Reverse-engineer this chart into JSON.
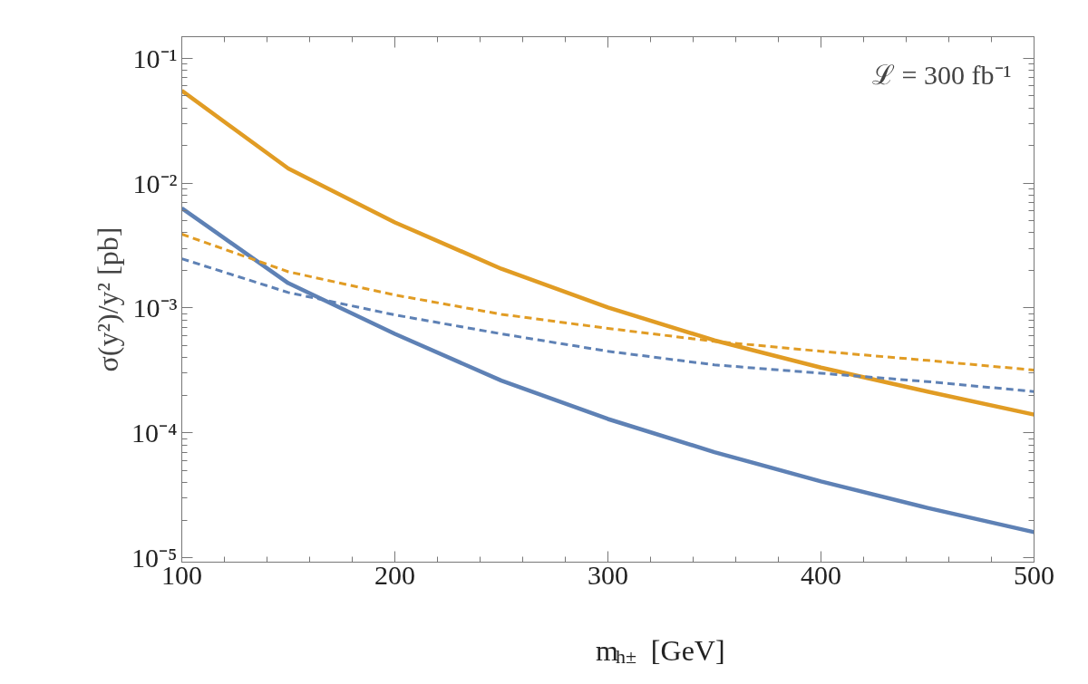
{
  "chart_data": {
    "type": "line",
    "xlabel": "m$_{h±}$ [GeV]",
    "ylabel": "σ(y²)/y² [pb]",
    "log": "y",
    "grid": false,
    "annotations": [
      "ℒ = 300 fb⁻¹"
    ],
    "x": [
      100,
      150,
      200,
      250,
      300,
      350,
      400,
      450,
      500
    ],
    "xlim": [
      100,
      500
    ],
    "xticks": [
      100,
      {
        "value": 120,
        "label": null
      },
      {
        "value": 140,
        "label": null
      },
      {
        "value": 160,
        "label": null
      },
      {
        "value": 180,
        "label": null
      },
      200,
      {
        "value": 220,
        "label": null
      },
      {
        "value": 240,
        "label": null
      },
      {
        "value": 260,
        "label": null
      },
      {
        "value": 280,
        "label": null
      },
      300,
      {
        "value": 320,
        "label": null
      },
      {
        "value": 340,
        "label": null
      },
      {
        "value": 360,
        "label": null
      },
      {
        "value": 380,
        "label": null
      },
      400,
      {
        "value": 420,
        "label": null
      },
      {
        "value": 440,
        "label": null
      },
      {
        "value": 460,
        "label": null
      },
      {
        "value": 480,
        "label": null
      },
      500
    ],
    "ylim": [
      9.2e-06,
      0.149
    ],
    "yticks": [
      {
        "value": 1e-05,
        "label": "10⁻⁵"
      },
      {
        "value": 2e-05,
        "label": null
      },
      {
        "value": 3e-05,
        "label": null
      },
      {
        "value": 4e-05,
        "label": null
      },
      {
        "value": 5e-05,
        "label": null
      },
      {
        "value": 6e-05,
        "label": null
      },
      {
        "value": 7e-05,
        "label": null
      },
      {
        "value": 8e-05,
        "label": null
      },
      {
        "value": 9e-05,
        "label": null
      },
      {
        "value": 0.0001,
        "label": "10⁻⁴"
      },
      {
        "value": 0.0002,
        "label": null
      },
      {
        "value": 0.0003,
        "label": null
      },
      {
        "value": 0.0004,
        "label": null
      },
      {
        "value": 0.0005,
        "label": null
      },
      {
        "value": 0.0006,
        "label": null
      },
      {
        "value": 0.0007,
        "label": null
      },
      {
        "value": 0.0008,
        "label": null
      },
      {
        "value": 0.0009,
        "label": null
      },
      {
        "value": 0.001,
        "label": "10⁻³"
      },
      {
        "value": 0.002,
        "label": null
      },
      {
        "value": 0.003,
        "label": null
      },
      {
        "value": 0.004,
        "label": null
      },
      {
        "value": 0.005,
        "label": null
      },
      {
        "value": 0.006,
        "label": null
      },
      {
        "value": 0.007,
        "label": null
      },
      {
        "value": 0.008,
        "label": null
      },
      {
        "value": 0.009,
        "label": null
      },
      {
        "value": 0.01,
        "label": "10⁻²"
      },
      {
        "value": 0.02,
        "label": null
      },
      {
        "value": 0.03,
        "label": null
      },
      {
        "value": 0.04,
        "label": null
      },
      {
        "value": 0.05,
        "label": null
      },
      {
        "value": 0.06,
        "label": null
      },
      {
        "value": 0.07,
        "label": null
      },
      {
        "value": 0.08,
        "label": null
      },
      {
        "value": 0.09,
        "label": null
      },
      {
        "value": 0.1,
        "label": "10⁻¹"
      }
    ],
    "series": [
      {
        "color": "#e19c24",
        "line_style": "solid",
        "values": [
          0.055,
          0.0131,
          0.00485,
          0.00206,
          0.00101,
          0.00055,
          0.000333,
          0.000214,
          0.00014
        ]
      },
      {
        "color": "#5e81b5",
        "line_style": "solid",
        "values": [
          0.0063,
          0.00158,
          0.00062,
          0.000262,
          0.000129,
          7e-05,
          4.08e-05,
          2.5e-05,
          1.6e-05
        ]
      },
      {
        "color": "#e19c24",
        "line_style": "dashed",
        "values": [
          0.0039,
          0.00195,
          0.00127,
          0.00089,
          0.000686,
          0.00054,
          0.00045,
          0.00038,
          0.000318
        ]
      },
      {
        "color": "#5e81b5",
        "line_style": "dashed",
        "values": [
          0.00248,
          0.00133,
          0.00088,
          0.00062,
          0.00045,
          0.00035,
          0.0003,
          0.000257,
          0.000214
        ]
      }
    ]
  }
}
